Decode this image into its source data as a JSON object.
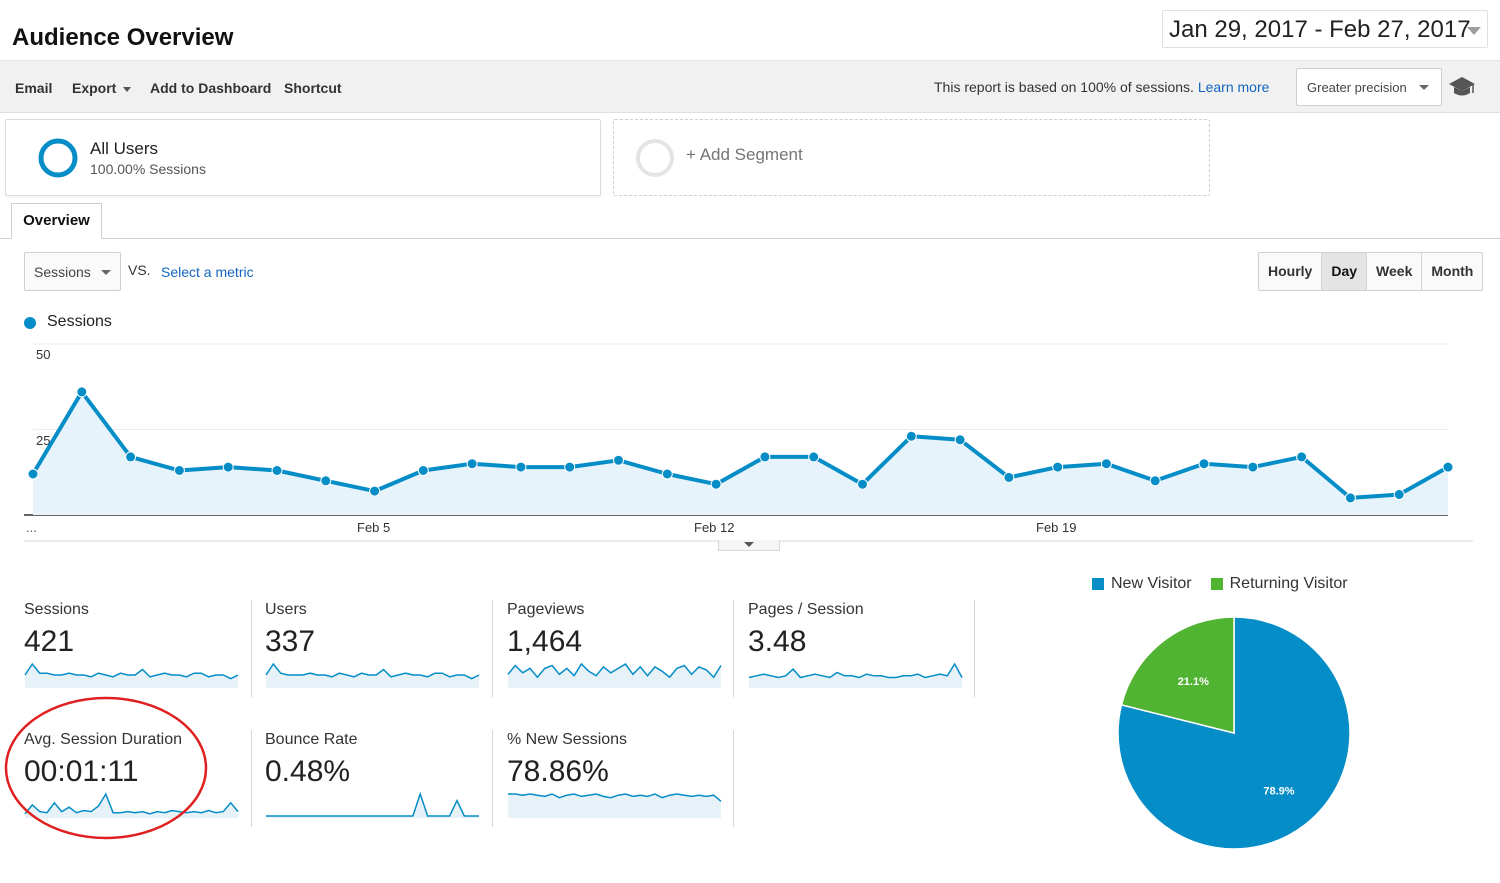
{
  "header": {
    "title": "Audience Overview",
    "date_range": "Jan 29, 2017 - Feb 27, 2017"
  },
  "toolbar": {
    "email": "Email",
    "export": "Export",
    "add_to_dashboard": "Add to Dashboard",
    "shortcut": "Shortcut",
    "report_note": "This report is based on 100% of sessions.",
    "learn_more": "Learn more",
    "precision": "Greater precision",
    "icon": "graduation-cap-icon"
  },
  "segments": {
    "all_users": {
      "name": "All Users",
      "sub": "100.00% Sessions"
    },
    "add_segment": "+ Add Segment"
  },
  "tabs": {
    "overview": "Overview"
  },
  "chart_controls": {
    "metric": "Sessions",
    "vs": "VS.",
    "select_metric": "Select a metric",
    "periods": [
      "Hourly",
      "Day",
      "Week",
      "Month"
    ],
    "active_period": "Day"
  },
  "chart_data": {
    "type": "area",
    "title": "",
    "series": [
      {
        "name": "Sessions",
        "values": [
          12,
          36,
          17,
          13,
          14,
          13,
          10,
          7,
          13,
          15,
          14,
          14,
          16,
          12,
          9,
          17,
          17,
          9,
          23,
          22,
          11,
          14,
          15,
          10,
          15,
          14,
          17,
          5,
          6,
          14
        ]
      }
    ],
    "x_tick_labels": [
      "...",
      "Feb 5",
      "Feb 12",
      "Feb 19"
    ],
    "y_tick_labels": [
      "50",
      "25"
    ],
    "ylim": [
      0,
      50
    ],
    "grid": true,
    "color": "#058dc7"
  },
  "metrics": [
    {
      "label": "Sessions",
      "value": "421",
      "spark": [
        6,
        12,
        7,
        7,
        6,
        6,
        7,
        6,
        6,
        5,
        7,
        6,
        5,
        7,
        6,
        6,
        9,
        5,
        6,
        7,
        6,
        6,
        5,
        7,
        7,
        5,
        6,
        6,
        4,
        6
      ]
    },
    {
      "label": "Users",
      "value": "337",
      "spark": [
        6,
        12,
        7,
        6,
        6,
        6,
        7,
        6,
        6,
        5,
        7,
        6,
        5,
        7,
        6,
        6,
        9,
        5,
        6,
        7,
        6,
        6,
        5,
        7,
        7,
        5,
        6,
        6,
        4,
        6
      ]
    },
    {
      "label": "Pageviews",
      "value": "1,464",
      "spark": [
        8,
        14,
        9,
        12,
        6,
        12,
        14,
        8,
        12,
        7,
        15,
        10,
        7,
        13,
        9,
        12,
        15,
        8,
        13,
        7,
        13,
        10,
        6,
        12,
        14,
        8,
        13,
        11,
        6,
        14
      ]
    },
    {
      "label": "Pages / Session",
      "value": "3.48",
      "spark": [
        5,
        6,
        7,
        6,
        5,
        6,
        10,
        5,
        6,
        7,
        6,
        5,
        8,
        6,
        6,
        5,
        7,
        6,
        6,
        5,
        5,
        6,
        6,
        7,
        5,
        6,
        7,
        6,
        13,
        5
      ]
    },
    {
      "label": "Avg. Session Duration",
      "value": "00:01:11",
      "spark": [
        2,
        10,
        4,
        3,
        12,
        4,
        8,
        3,
        5,
        4,
        9,
        20,
        3,
        3,
        4,
        3,
        4,
        2,
        4,
        3,
        5,
        4,
        3,
        4,
        3,
        5,
        3,
        4,
        12,
        4
      ]
    },
    {
      "label": "Bounce Rate",
      "value": "0.48%",
      "spark": [
        0,
        0,
        0,
        0,
        0,
        0,
        0,
        0,
        0,
        0,
        0,
        0,
        0,
        0,
        0,
        0,
        0,
        0,
        0,
        0,
        0,
        20,
        0,
        0,
        0,
        0,
        14,
        0,
        0,
        0
      ]
    },
    {
      "label": "% New Sessions",
      "value": "78.86%",
      "spark": [
        18,
        18,
        17,
        18,
        17,
        16,
        18,
        15,
        17,
        18,
        16,
        17,
        18,
        16,
        15,
        17,
        18,
        16,
        17,
        16,
        18,
        15,
        17,
        18,
        17,
        16,
        17,
        16,
        17,
        12
      ]
    }
  ],
  "pie": {
    "legend": [
      {
        "name": "New Visitor",
        "color": "#058dc7"
      },
      {
        "name": "Returning Visitor",
        "color": "#50b432"
      }
    ],
    "slices": [
      {
        "name": "New Visitor",
        "value": 78.9,
        "label": "78.9%",
        "color": "#058dc7"
      },
      {
        "name": "Returning Visitor",
        "value": 21.1,
        "label": "21.1%",
        "color": "#50b432"
      }
    ]
  }
}
